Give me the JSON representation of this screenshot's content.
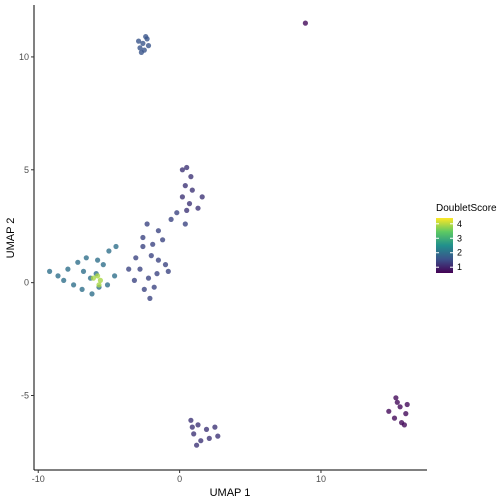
{
  "chart_data": {
    "type": "scatter",
    "title": "",
    "xlabel": "UMAP 1",
    "ylabel": "UMAP 2",
    "xlim": [
      -10.3,
      17.5
    ],
    "ylim": [
      -8.3,
      12.3
    ],
    "x_ticks": [
      -10,
      0,
      10
    ],
    "y_ticks": [
      -5,
      0,
      5,
      10
    ],
    "grid": false,
    "legend": {
      "title": "DoubletScore",
      "placement": "right",
      "range": [
        0.6,
        4.4
      ],
      "ticks": [
        1,
        2,
        3,
        4
      ],
      "colors": [
        "#440154",
        "#3b528b",
        "#21908c",
        "#5dc963",
        "#fde725"
      ]
    },
    "clusters": [
      {
        "name": "",
        "points": [
          [
            -2.6,
            10.6
          ],
          [
            -2.3,
            10.8
          ],
          [
            -2.8,
            10.4
          ],
          [
            -2.5,
            10.3
          ],
          [
            -2.2,
            10.5
          ],
          [
            -2.9,
            10.7
          ],
          [
            -2.4,
            10.9
          ],
          [
            -2.7,
            10.2
          ]
        ],
        "score": 1.6
      },
      {
        "name": "",
        "points": [
          [
            8.9,
            11.5
          ]
        ],
        "score": 0.7
      },
      {
        "name": "",
        "points": [
          [
            0.2,
            5.0
          ],
          [
            0.5,
            5.1
          ],
          [
            0.8,
            4.7
          ],
          [
            0.4,
            4.3
          ],
          [
            0.9,
            4.1
          ],
          [
            0.2,
            3.8
          ],
          [
            0.7,
            3.5
          ],
          [
            1.3,
            3.3
          ],
          [
            1.6,
            3.8
          ],
          [
            0.5,
            3.2
          ]
        ],
        "score": 1.2
      },
      {
        "name": "",
        "points": [
          [
            -2.3,
            2.6
          ],
          [
            -1.5,
            2.3
          ],
          [
            -1.2,
            1.9
          ],
          [
            -0.6,
            2.8
          ],
          [
            -0.2,
            3.1
          ],
          [
            0.4,
            2.6
          ],
          [
            -2.6,
            1.6
          ],
          [
            -2.0,
            1.2
          ],
          [
            -1.5,
            1.0
          ],
          [
            -2.8,
            0.6
          ],
          [
            -2.2,
            0.2
          ],
          [
            -1.6,
            0.4
          ],
          [
            -1.0,
            0.8
          ],
          [
            -2.5,
            -0.3
          ],
          [
            -2.1,
            -0.7
          ],
          [
            -3.1,
            1.1
          ],
          [
            -3.6,
            0.6
          ],
          [
            -3.2,
            0.1
          ],
          [
            -1.8,
            -0.2
          ],
          [
            -0.8,
            0.5
          ],
          [
            -2.6,
            2.0
          ],
          [
            -1.9,
            1.7
          ]
        ],
        "score": 1.4
      },
      {
        "name": "",
        "points": [
          [
            -9.2,
            0.5
          ],
          [
            -8.6,
            0.3
          ],
          [
            -7.9,
            0.6
          ],
          [
            -7.2,
            0.9
          ],
          [
            -6.8,
            0.5
          ],
          [
            -6.3,
            0.2
          ],
          [
            -5.9,
            0.4
          ],
          [
            -5.4,
            0.8
          ],
          [
            -5.0,
            1.4
          ],
          [
            -4.5,
            1.6
          ],
          [
            -7.5,
            -0.1
          ],
          [
            -6.9,
            -0.3
          ],
          [
            -6.2,
            -0.5
          ],
          [
            -5.7,
            -0.2
          ],
          [
            -5.1,
            -0.1
          ],
          [
            -4.6,
            0.3
          ],
          [
            -6.6,
            1.1
          ],
          [
            -5.8,
            1.0
          ],
          [
            -8.2,
            0.1
          ]
        ],
        "score": 2.0
      },
      {
        "name": "",
        "points": [
          [
            -5.8,
            0.3
          ],
          [
            -5.6,
            0.1
          ],
          [
            -6.1,
            0.2
          ],
          [
            -5.7,
            -0.1
          ]
        ],
        "score": 3.9
      },
      {
        "name": "",
        "points": [
          [
            0.8,
            -6.1
          ],
          [
            1.3,
            -6.3
          ],
          [
            1.9,
            -6.5
          ],
          [
            2.5,
            -6.4
          ],
          [
            2.1,
            -6.9
          ],
          [
            1.5,
            -7.0
          ],
          [
            1.0,
            -6.7
          ],
          [
            2.7,
            -6.8
          ],
          [
            1.2,
            -7.2
          ],
          [
            0.9,
            -6.4
          ]
        ],
        "score": 1.2
      },
      {
        "name": "",
        "points": [
          [
            14.8,
            -5.7
          ],
          [
            15.3,
            -5.1
          ],
          [
            15.6,
            -5.5
          ],
          [
            16.0,
            -5.8
          ],
          [
            15.2,
            -6.0
          ],
          [
            15.7,
            -6.2
          ],
          [
            15.4,
            -5.3
          ],
          [
            16.1,
            -5.4
          ],
          [
            15.9,
            -6.3
          ]
        ],
        "score": 0.7
      }
    ]
  }
}
